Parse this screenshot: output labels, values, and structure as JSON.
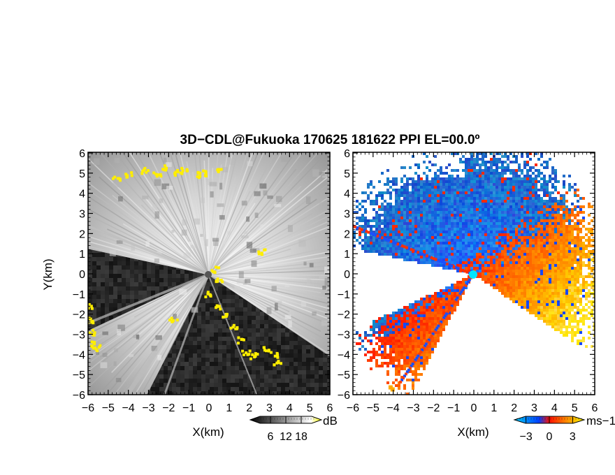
{
  "title": "3D−CDL@Fukuoka 170625 181622 PPI EL=00.0º",
  "chart_data": [
    {
      "type": "heatmap",
      "panel": "left",
      "quantity": "backscatter intensity",
      "xlabel": "X(km)",
      "ylabel": "Y(km)",
      "xlim": [
        -6,
        6
      ],
      "ylim": [
        -6,
        6
      ],
      "xticks": [
        "−6",
        "−5",
        "−4",
        "−3",
        "−2",
        "−1",
        "0",
        "1",
        "2",
        "3",
        "4",
        "5",
        "6"
      ],
      "yticks": [
        "−6",
        "−5",
        "−4",
        "−3",
        "−2",
        "−1",
        "0",
        "1",
        "2",
        "3",
        "4",
        "5",
        "6"
      ],
      "colorbar": {
        "unit": "dB",
        "ticks": [
          6,
          12,
          18
        ],
        "tick_labels": [
          "6",
          "12",
          "18"
        ],
        "range": [
          0,
          24
        ],
        "colors": [
          "#000000",
          "#ffffff",
          "#ffff00"
        ]
      },
      "radar_position": {
        "x": 0,
        "y": 0
      },
      "blanked_sectors_deg": [
        [
          168,
          205
        ],
        [
          243,
          326
        ]
      ]
    },
    {
      "type": "heatmap",
      "panel": "right",
      "quantity": "radial velocity",
      "xlabel": "X(km)",
      "xlim": [
        -6,
        6
      ],
      "ylim": [
        -6,
        6
      ],
      "xticks": [
        "−6",
        "−5",
        "−4",
        "−3",
        "−2",
        "−1",
        "0",
        "1",
        "2",
        "3",
        "4",
        "5",
        "6"
      ],
      "yticks": [
        "−6",
        "−5",
        "−4",
        "−3",
        "−2",
        "−1",
        "0",
        "1",
        "2",
        "3",
        "4",
        "5",
        "6"
      ],
      "colorbar": {
        "unit": "ms−1",
        "ticks": [
          -3,
          0,
          3
        ],
        "tick_labels": [
          "−3",
          "0",
          "3"
        ],
        "range": [
          -4.5,
          4.5
        ],
        "colors": [
          "#00c8ff",
          "#0050ff",
          "#ff2000",
          "#ff8c00",
          "#ffff00"
        ]
      },
      "radar_position": {
        "x": 0,
        "y": 0
      },
      "blanked_sectors_deg": [
        [
          168,
          205
        ],
        [
          243,
          326
        ]
      ]
    }
  ],
  "colors": {
    "radar_left": "#555555",
    "radar_right": "#00e5ff",
    "echo_edge": "#ffee00"
  }
}
